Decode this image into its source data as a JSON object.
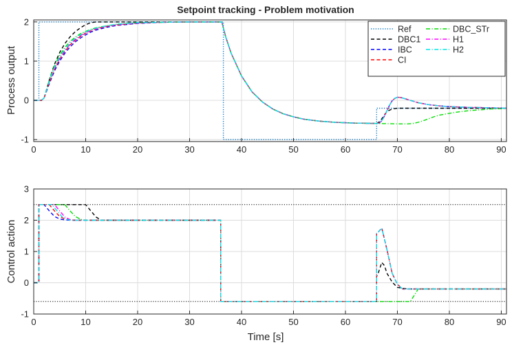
{
  "chart_data": [
    {
      "type": "line",
      "title": "Setpoint tracking - Problem motivation",
      "xlabel": "",
      "ylabel": "Process output",
      "xlim": [
        0,
        91
      ],
      "ylim": [
        -1.05,
        2.05
      ],
      "xticks": [
        0,
        10,
        20,
        30,
        40,
        50,
        60,
        70,
        80,
        90
      ],
      "yticks": [
        -1,
        0,
        1,
        2
      ],
      "grid": true,
      "legend_position": "top-right",
      "series": [
        {
          "name": "Ref",
          "color": "#0072BD",
          "dash": "dotted",
          "x": [
            0,
            1,
            1,
            36.5,
            36.5,
            66,
            66,
            91
          ],
          "y": [
            0,
            0,
            2,
            2,
            -1,
            -1,
            -0.2,
            -0.2
          ]
        },
        {
          "name": "DBC1",
          "color": "#000000",
          "dash": "dashed",
          "x": [
            0,
            1.5,
            2,
            3,
            4,
            5,
            6,
            7,
            8,
            9,
            10,
            11,
            12,
            14,
            16,
            20,
            25,
            30,
            36.2,
            37,
            38,
            40,
            42,
            44,
            46,
            48,
            50,
            52,
            55,
            58,
            60,
            62,
            64,
            66,
            66.5,
            67,
            67.5,
            68,
            69,
            70,
            71,
            72,
            74,
            76,
            78,
            80,
            84,
            88,
            91
          ],
          "y": [
            0,
            0,
            0.06,
            0.52,
            0.92,
            1.22,
            1.45,
            1.62,
            1.75,
            1.85,
            1.93,
            1.98,
            2.0,
            2.0,
            2.0,
            2.0,
            2.0,
            2.0,
            2.0,
            1.6,
            1.2,
            0.62,
            0.22,
            -0.04,
            -0.22,
            -0.34,
            -0.42,
            -0.48,
            -0.53,
            -0.56,
            -0.57,
            -0.58,
            -0.585,
            -0.59,
            -0.55,
            -0.47,
            -0.37,
            -0.28,
            -0.22,
            -0.2,
            -0.2,
            -0.2,
            -0.2,
            -0.2,
            -0.2,
            -0.2,
            -0.2,
            -0.2,
            -0.2
          ]
        },
        {
          "name": "IBC",
          "color": "#0000FF",
          "dash": "dashed",
          "x": [
            0,
            1.5,
            2,
            3,
            4,
            5,
            6,
            7,
            8,
            9,
            10,
            11,
            12,
            14,
            16,
            20,
            25,
            30,
            36.2,
            37,
            38,
            40,
            42,
            44,
            46,
            48,
            50,
            52,
            55,
            58,
            60,
            62,
            64,
            66,
            66.5,
            67,
            67.5,
            68,
            68.5,
            69,
            69.5,
            70,
            70.5,
            71,
            72,
            73,
            74,
            76,
            78,
            80,
            84,
            88,
            91
          ],
          "y": [
            0,
            0,
            0.06,
            0.42,
            0.75,
            1.0,
            1.2,
            1.36,
            1.49,
            1.59,
            1.67,
            1.74,
            1.79,
            1.86,
            1.91,
            1.96,
            1.99,
            2.0,
            2.0,
            1.6,
            1.2,
            0.62,
            0.22,
            -0.04,
            -0.22,
            -0.34,
            -0.42,
            -0.48,
            -0.53,
            -0.56,
            -0.57,
            -0.58,
            -0.585,
            -0.59,
            -0.58,
            -0.52,
            -0.4,
            -0.26,
            -0.12,
            -0.01,
            0.05,
            0.08,
            0.075,
            0.06,
            0.02,
            -0.02,
            -0.06,
            -0.11,
            -0.14,
            -0.16,
            -0.18,
            -0.19,
            -0.2
          ]
        },
        {
          "name": "CI",
          "color": "#FF0000",
          "dash": "dashed",
          "x": [
            0,
            1.5,
            2,
            3,
            4,
            5,
            6,
            7,
            8,
            9,
            10,
            11,
            12,
            14,
            16,
            20,
            25,
            30,
            36.2,
            37,
            38,
            40,
            42,
            44,
            46,
            48,
            50,
            52,
            55,
            58,
            60,
            62,
            64,
            66,
            66.5,
            67,
            67.5,
            68,
            68.5,
            69,
            69.5,
            70,
            70.5,
            71,
            72,
            73,
            74,
            76,
            78,
            80,
            84,
            88,
            91
          ],
          "y": [
            0,
            0,
            0.06,
            0.45,
            0.79,
            1.05,
            1.25,
            1.41,
            1.53,
            1.63,
            1.71,
            1.77,
            1.82,
            1.88,
            1.92,
            1.97,
            1.99,
            2.0,
            2.0,
            1.6,
            1.2,
            0.62,
            0.22,
            -0.04,
            -0.22,
            -0.34,
            -0.42,
            -0.48,
            -0.53,
            -0.56,
            -0.57,
            -0.58,
            -0.585,
            -0.59,
            -0.58,
            -0.52,
            -0.4,
            -0.26,
            -0.12,
            -0.01,
            0.05,
            0.08,
            0.075,
            0.06,
            0.02,
            -0.02,
            -0.06,
            -0.11,
            -0.14,
            -0.16,
            -0.18,
            -0.19,
            -0.2
          ]
        },
        {
          "name": "DBC_STr",
          "color": "#00DD00",
          "dash": "dashdot",
          "x": [
            0,
            1.5,
            2,
            3,
            4,
            5,
            6,
            7,
            8,
            9,
            10,
            11,
            12,
            14,
            16,
            20,
            25,
            30,
            36.2,
            37,
            38,
            40,
            42,
            44,
            46,
            48,
            50,
            52,
            55,
            58,
            60,
            62,
            64,
            66,
            67,
            68,
            70,
            72,
            73,
            74,
            75,
            76,
            77,
            78,
            80,
            82,
            84,
            86,
            88,
            91
          ],
          "y": [
            0,
            0,
            0.06,
            0.52,
            0.88,
            1.15,
            1.35,
            1.5,
            1.61,
            1.7,
            1.76,
            1.81,
            1.85,
            1.9,
            1.94,
            1.98,
            1.99,
            2.0,
            2.0,
            1.6,
            1.2,
            0.62,
            0.22,
            -0.04,
            -0.22,
            -0.34,
            -0.42,
            -0.48,
            -0.53,
            -0.56,
            -0.57,
            -0.58,
            -0.585,
            -0.59,
            -0.592,
            -0.595,
            -0.6,
            -0.6,
            -0.59,
            -0.56,
            -0.52,
            -0.47,
            -0.42,
            -0.38,
            -0.33,
            -0.29,
            -0.26,
            -0.24,
            -0.22,
            -0.21
          ]
        },
        {
          "name": "H1",
          "color": "#FF00FF",
          "dash": "dashdot",
          "x": [
            0,
            1.5,
            2,
            3,
            4,
            5,
            6,
            7,
            8,
            9,
            10,
            11,
            12,
            14,
            16,
            20,
            25,
            30,
            36.2,
            37,
            38,
            40,
            42,
            44,
            46,
            48,
            50,
            52,
            55,
            58,
            60,
            62,
            64,
            66,
            66.5,
            67,
            67.5,
            68,
            68.5,
            69,
            69.5,
            70,
            70.5,
            71,
            72,
            73,
            74,
            76,
            78,
            80,
            84,
            88,
            91
          ],
          "y": [
            0,
            0,
            0.06,
            0.46,
            0.81,
            1.07,
            1.27,
            1.43,
            1.55,
            1.65,
            1.72,
            1.78,
            1.83,
            1.89,
            1.93,
            1.97,
            1.99,
            2.0,
            2.0,
            1.6,
            1.2,
            0.62,
            0.22,
            -0.04,
            -0.22,
            -0.34,
            -0.42,
            -0.48,
            -0.53,
            -0.56,
            -0.57,
            -0.58,
            -0.585,
            -0.59,
            -0.58,
            -0.52,
            -0.4,
            -0.26,
            -0.12,
            -0.01,
            0.05,
            0.08,
            0.075,
            0.06,
            0.02,
            -0.02,
            -0.06,
            -0.11,
            -0.14,
            -0.16,
            -0.18,
            -0.19,
            -0.2
          ]
        },
        {
          "name": "H2",
          "color": "#00E5E5",
          "dash": "dashdot",
          "x": [
            0,
            1.5,
            2,
            3,
            4,
            5,
            6,
            7,
            8,
            9,
            10,
            11,
            12,
            14,
            16,
            20,
            25,
            30,
            36.2,
            37,
            38,
            40,
            42,
            44,
            46,
            48,
            50,
            52,
            55,
            58,
            60,
            62,
            64,
            66,
            66.5,
            67,
            67.5,
            68,
            68.5,
            69,
            69.5,
            70,
            70.5,
            71,
            72,
            73,
            74,
            76,
            78,
            80,
            84,
            88,
            91
          ],
          "y": [
            0,
            0,
            0.06,
            0.48,
            0.84,
            1.1,
            1.3,
            1.46,
            1.58,
            1.67,
            1.74,
            1.8,
            1.84,
            1.9,
            1.94,
            1.98,
            1.99,
            2.0,
            2.0,
            1.6,
            1.2,
            0.62,
            0.22,
            -0.04,
            -0.22,
            -0.34,
            -0.42,
            -0.48,
            -0.53,
            -0.56,
            -0.57,
            -0.58,
            -0.585,
            -0.59,
            -0.58,
            -0.52,
            -0.4,
            -0.26,
            -0.12,
            -0.01,
            0.05,
            0.08,
            0.075,
            0.06,
            0.02,
            -0.02,
            -0.06,
            -0.11,
            -0.14,
            -0.16,
            -0.18,
            -0.19,
            -0.2
          ]
        }
      ]
    },
    {
      "type": "line",
      "title": "",
      "xlabel": "Time [s]",
      "ylabel": "Control action",
      "xlim": [
        0,
        91
      ],
      "ylim": [
        -1,
        3
      ],
      "xticks": [
        0,
        10,
        20,
        30,
        40,
        50,
        60,
        70,
        80,
        90
      ],
      "yticks": [
        -1,
        0,
        1,
        2,
        3
      ],
      "grid": true,
      "limit_lines": {
        "color": "#000000",
        "dash": "dotted",
        "y": [
          2.5,
          -0.6
        ]
      },
      "series": [
        {
          "name": "DBC1",
          "color": "#000000",
          "dash": "dashed",
          "x": [
            0,
            1,
            1,
            10,
            11,
            12,
            13,
            36,
            36,
            66,
            66,
            66.3,
            67,
            67.5,
            68,
            69,
            70,
            72,
            91
          ],
          "y": [
            0,
            0,
            2.5,
            2.5,
            2.3,
            2.1,
            2.0,
            2.0,
            -0.6,
            -0.6,
            0.2,
            0.3,
            0.65,
            0.55,
            0.3,
            0.02,
            -0.15,
            -0.2,
            -0.2
          ]
        },
        {
          "name": "IBC",
          "color": "#0000FF",
          "dash": "dashed",
          "x": [
            0,
            1,
            1,
            2,
            3,
            4,
            5,
            6,
            7,
            36,
            36,
            66,
            66,
            66.2,
            67,
            68,
            69,
            70,
            71,
            91
          ],
          "y": [
            0,
            0,
            2.5,
            2.5,
            2.3,
            2.12,
            2.04,
            2.01,
            2.0,
            2.0,
            -0.6,
            -0.6,
            1.58,
            1.6,
            1.75,
            1.05,
            0.3,
            -0.05,
            -0.2,
            -0.2
          ]
        },
        {
          "name": "CI",
          "color": "#FF0000",
          "dash": "dashed",
          "x": [
            0,
            1,
            1,
            3,
            4,
            5,
            6,
            7,
            8,
            36,
            36,
            66,
            66,
            66.2,
            67,
            68,
            69,
            70,
            71,
            91
          ],
          "y": [
            0,
            0,
            2.5,
            2.5,
            2.3,
            2.12,
            2.04,
            2.01,
            2.0,
            2.0,
            -0.6,
            -0.6,
            1.58,
            1.6,
            1.75,
            1.05,
            0.3,
            -0.05,
            -0.2,
            -0.2
          ]
        },
        {
          "name": "DBC_STr",
          "color": "#00DD00",
          "dash": "dashdot",
          "x": [
            0,
            1,
            1,
            6,
            7,
            8,
            9,
            10,
            36,
            36,
            72.5,
            74,
            91
          ],
          "y": [
            0,
            0,
            2.5,
            2.5,
            2.3,
            2.12,
            2.03,
            2.0,
            2.0,
            -0.6,
            -0.6,
            -0.2,
            -0.2
          ]
        },
        {
          "name": "H1",
          "color": "#FF00FF",
          "dash": "dashdot",
          "x": [
            0,
            1,
            1,
            4,
            5,
            6,
            7,
            8,
            36,
            36,
            66,
            66,
            66.2,
            67,
            68,
            69,
            70,
            71,
            91
          ],
          "y": [
            0,
            0,
            2.5,
            2.5,
            2.3,
            2.1,
            2.02,
            2.0,
            2.0,
            -0.6,
            -0.6,
            1.58,
            1.6,
            1.75,
            1.05,
            0.3,
            -0.05,
            -0.2,
            -0.2
          ]
        },
        {
          "name": "H2",
          "color": "#00E5E5",
          "dash": "dashdot",
          "x": [
            0,
            1,
            1,
            3.5,
            4.5,
            5.5,
            6.5,
            7.5,
            36,
            36,
            66,
            66,
            66.2,
            67,
            68,
            69,
            70,
            71,
            91
          ],
          "y": [
            0,
            0,
            2.5,
            2.5,
            2.3,
            2.1,
            2.02,
            2.0,
            2.0,
            -0.6,
            -0.6,
            1.58,
            1.6,
            1.75,
            1.05,
            0.3,
            -0.05,
            -0.2,
            -0.2
          ]
        }
      ]
    }
  ]
}
